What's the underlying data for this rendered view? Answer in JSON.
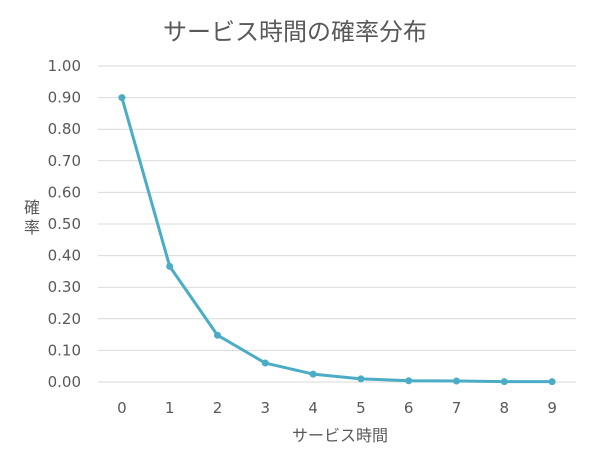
{
  "chart_data": {
    "type": "line",
    "title": "サービス時間の確率分布",
    "xlabel": "サービス時間",
    "ylabel": "確率",
    "x": [
      0,
      1,
      2,
      3,
      4,
      5,
      6,
      7,
      8,
      9
    ],
    "x_tick_labels": [
      "0",
      "1",
      "2",
      "3",
      "4",
      "5",
      "6",
      "7",
      "8",
      "9"
    ],
    "y_tick_labels": [
      "0.00",
      "0.10",
      "0.20",
      "0.30",
      "0.40",
      "0.50",
      "0.60",
      "0.70",
      "0.80",
      "0.90",
      "1.00"
    ],
    "ylim": [
      0,
      1.0
    ],
    "y_tick_step": 0.1,
    "grid": "horizontal",
    "series": [
      {
        "values": [
          0.9,
          0.366,
          0.148,
          0.06,
          0.025,
          0.01,
          0.004,
          0.003,
          0.001,
          0.001
        ],
        "color": "#4bacc6"
      }
    ]
  }
}
